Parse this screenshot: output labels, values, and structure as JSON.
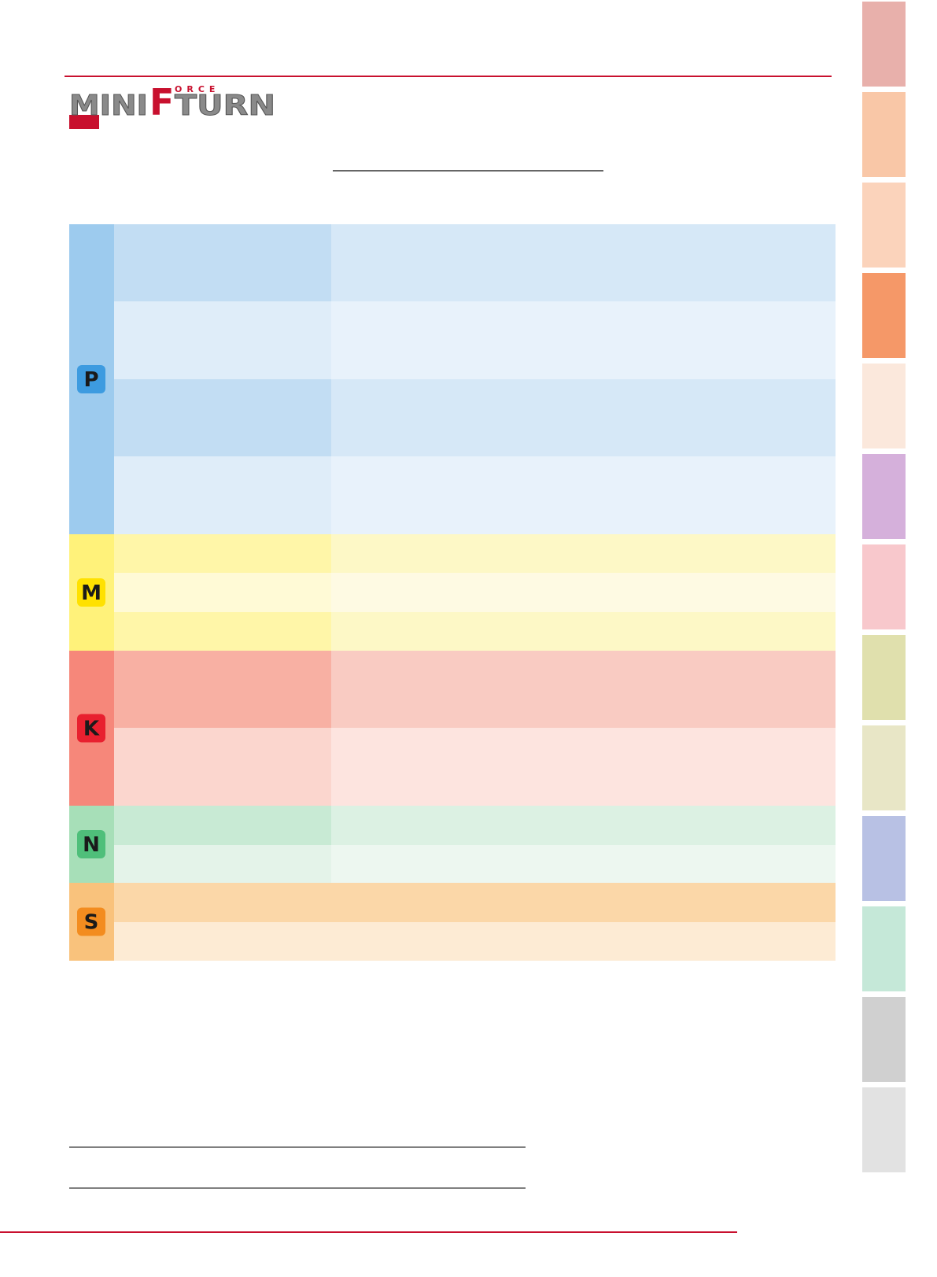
{
  "logo": {
    "mini": "MINI",
    "f": "F",
    "orce": "ORCE",
    "turn": "TURN"
  },
  "table": {
    "groups": [
      "P",
      "M",
      "K",
      "N",
      "S"
    ]
  }
}
